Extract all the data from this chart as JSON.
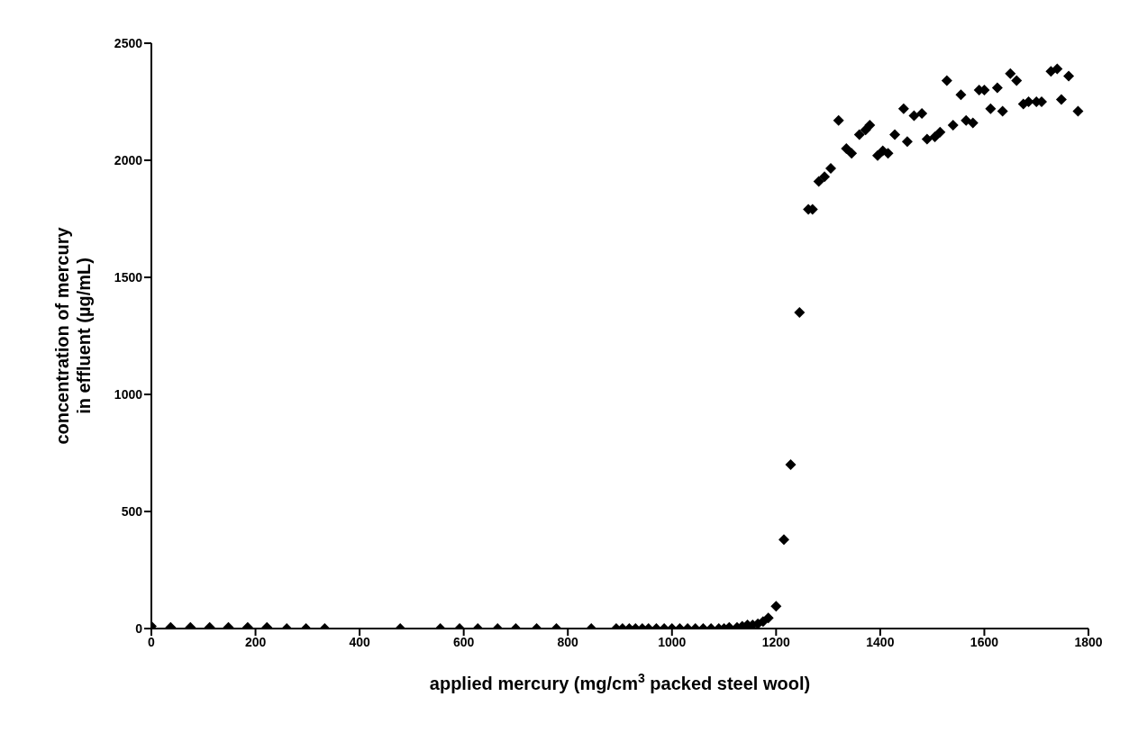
{
  "chart_data": {
    "type": "scatter",
    "xlabel": "applied mercury (mg/cm$^{3}$ packed steel wool)",
    "ylabel": "concentration of mercury\nin effluent (µg/mL)",
    "x": [
      0,
      37,
      75,
      112,
      148,
      185,
      222,
      260,
      297,
      333,
      478,
      555,
      592,
      627,
      665,
      700,
      740,
      778,
      845,
      893,
      905,
      918,
      930,
      943,
      955,
      970,
      985,
      1000,
      1015,
      1030,
      1045,
      1060,
      1075,
      1090,
      1100,
      1110,
      1125,
      1135,
      1145,
      1155,
      1165,
      1175,
      1185,
      1200,
      1215,
      1228,
      1245,
      1262,
      1270,
      1282,
      1293,
      1305,
      1320,
      1335,
      1345,
      1360,
      1372,
      1380,
      1395,
      1405,
      1415,
      1428,
      1445,
      1452,
      1465,
      1480,
      1490,
      1505,
      1515,
      1528,
      1540,
      1555,
      1565,
      1578,
      1590,
      1600,
      1612,
      1625,
      1635,
      1650,
      1662,
      1675,
      1685,
      1700,
      1710,
      1728,
      1740,
      1748,
      1762,
      1780
    ],
    "values": [
      10,
      5,
      5,
      5,
      5,
      5,
      5,
      0,
      0,
      0,
      0,
      0,
      0,
      0,
      0,
      0,
      0,
      0,
      0,
      0,
      0,
      0,
      0,
      0,
      0,
      0,
      0,
      0,
      0,
      0,
      0,
      0,
      0,
      0,
      0,
      5,
      5,
      10,
      15,
      15,
      20,
      30,
      45,
      95,
      380,
      700,
      1350,
      1790,
      1790,
      1910,
      1930,
      1965,
      2170,
      2050,
      2030,
      2110,
      2130,
      2150,
      2020,
      2040,
      2030,
      2110,
      2220,
      2080,
      2190,
      2200,
      2090,
      2100,
      2120,
      2340,
      2150,
      2280,
      2170,
      2160,
      2300,
      2300,
      2220,
      2310,
      2210,
      2370,
      2340,
      2240,
      2250,
      2250,
      2250,
      2380,
      2390,
      2260,
      2360,
      2210
    ],
    "color": "#000000",
    "marker": "diamond",
    "xlim": [
      0,
      1800
    ],
    "ylim": [
      0,
      2500
    ],
    "xticks": [
      0,
      200,
      400,
      600,
      800,
      1000,
      1200,
      1400,
      1600,
      1800
    ],
    "yticks": [
      0,
      500,
      1000,
      1500,
      2000,
      2500
    ],
    "grid": false
  }
}
